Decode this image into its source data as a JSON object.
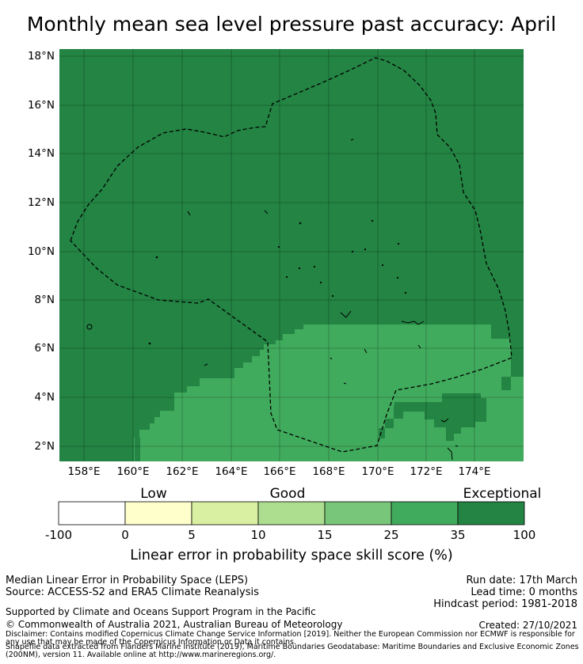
{
  "title": "Monthly mean sea level pressure past accuracy: April",
  "map": {
    "lat_labels": [
      "18°N",
      "16°N",
      "14°N",
      "12°N",
      "10°N",
      "8°N",
      "6°N",
      "4°N",
      "2°N"
    ],
    "lon_labels": [
      "158°E",
      "160°E",
      "162°E",
      "164°E",
      "166°E",
      "168°E",
      "170°E",
      "172°E",
      "174°E"
    ],
    "extent": {
      "lon": [
        157,
        176
      ],
      "lat": [
        1.4,
        18.3
      ]
    },
    "boundary_style": "dashed",
    "colors": {
      "exceptional": "#238443",
      "band_25_35": "#41ab5d"
    }
  },
  "colorbar": {
    "categories": [
      "Low",
      "Good",
      "Exceptional"
    ],
    "ticks": [
      "-100",
      "0",
      "5",
      "10",
      "15",
      "25",
      "35",
      "100"
    ],
    "colors": [
      "#ffffff",
      "#ffffcc",
      "#d9f0a3",
      "#addd8e",
      "#78c679",
      "#41ab5d",
      "#238443"
    ],
    "label": "Linear error in probability space skill score (%)"
  },
  "info": {
    "method": "Median Linear Error in Probability Space (LEPS)",
    "source": "Source: ACCESS-S2 and ERA5 Climate Reanalysis",
    "run_date": "Run date: 17th March",
    "lead_time": "Lead time: 0 months",
    "hindcast": "Hindcast period: 1981-2018",
    "support": "Supported by Climate and Oceans Support Program in the Pacific",
    "copyright": "© Commonwealth of Australia 2021, Australian Bureau of Meteorology",
    "created": "Created: 27/10/2021",
    "disclaimer": "Disclaimer: Contains modified Copernicus Climate Change Service Information [2019]. Neither the European Commission nor ECMWF is responsible for any use that may be made of the Copernicus Information or Data it contains.",
    "shapefile": "Shapefile data extracted from Flanders Marine Institute (2019), Maritime Boundaries Geodatabase: Maritime Boundaries and Exclusive Economic Zones (200NM), version 11. Available online at http://www.marineregions.org/."
  }
}
